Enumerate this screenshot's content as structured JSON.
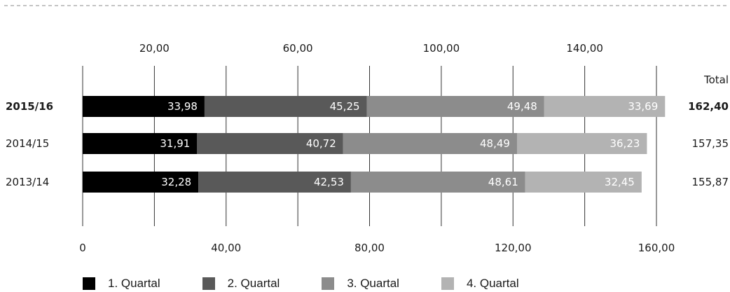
{
  "chart_data": {
    "type": "bar",
    "orientation": "horizontal",
    "stacked": true,
    "categories": [
      "2015/16",
      "2014/15",
      "2013/14"
    ],
    "series": [
      {
        "name": "1. Quartal",
        "color": "#000000",
        "values": [
          33.98,
          31.91,
          32.28
        ],
        "labels": [
          "33,98",
          "31,91",
          "32,28"
        ]
      },
      {
        "name": "2. Quartal",
        "color": "#595959",
        "values": [
          45.25,
          40.72,
          42.53
        ],
        "labels": [
          "45,25",
          "40,72",
          "42,53"
        ]
      },
      {
        "name": "3. Quartal",
        "color": "#8c8c8c",
        "values": [
          49.48,
          48.49,
          48.61
        ],
        "labels": [
          "49,48",
          "48,49",
          "48,61"
        ]
      },
      {
        "name": "4. Quartal",
        "color": "#b3b3b3",
        "values": [
          33.69,
          36.23,
          32.45
        ],
        "labels": [
          "33,69",
          "36,23",
          "32,45"
        ]
      }
    ],
    "totals_header": "Total",
    "totals": [
      "162,40",
      "157,35",
      "155,87"
    ],
    "bold_category": "2015/16",
    "xlim": [
      0,
      160
    ],
    "top_ticks": [
      "20,00",
      "60,00",
      "100,00",
      "140,00"
    ],
    "top_tick_values": [
      20,
      60,
      100,
      140
    ],
    "bottom_ticks": [
      "0",
      "40,00",
      "80,00",
      "120,00",
      "160,00"
    ],
    "bottom_tick_values": [
      0,
      40,
      80,
      120,
      160
    ],
    "grid_values": [
      0,
      20,
      40,
      60,
      80,
      100,
      120,
      140,
      160
    ],
    "legend_position": "bottom",
    "title": "",
    "xlabel": "",
    "ylabel": ""
  }
}
